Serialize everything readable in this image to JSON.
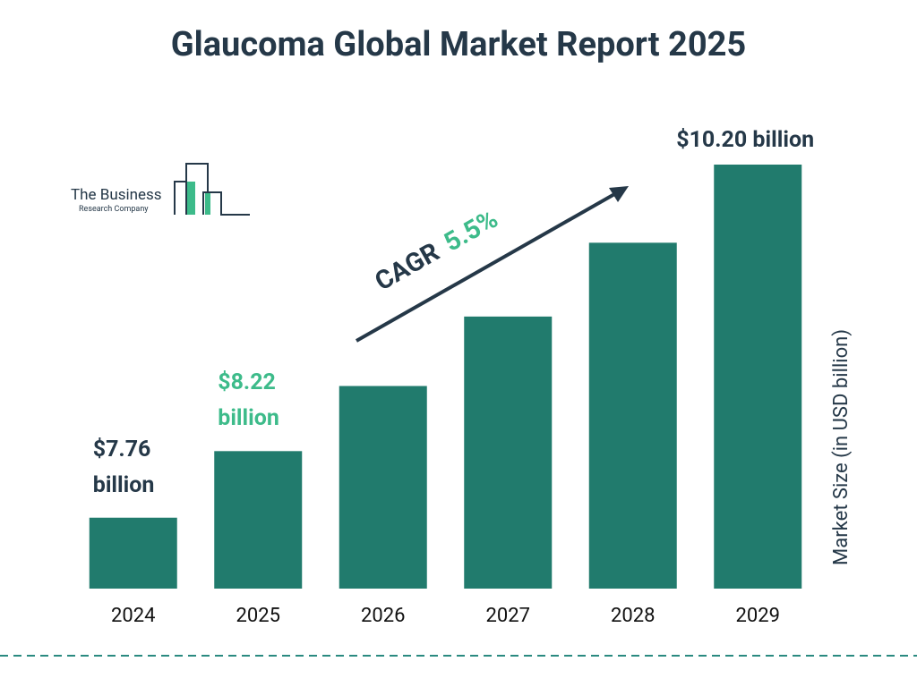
{
  "chart_data": {
    "type": "bar",
    "title": "Glaucoma Global Market Report 2025",
    "logo": {
      "line1": "The Business",
      "line2": "Research Company"
    },
    "y_axis_label": "Market Size (in USD billion)",
    "categories": [
      "2024",
      "2025",
      "2026",
      "2027",
      "2028",
      "2029"
    ],
    "values": [
      7.76,
      8.22,
      8.67,
      9.15,
      9.66,
      10.2
    ],
    "value_labels": [
      "$7.76 billion",
      "$8.22 billion",
      null,
      null,
      null,
      "$10.20 billion"
    ],
    "value_label_colors": [
      "#253848",
      "#3dbb8a",
      null,
      null,
      null,
      "#253848"
    ],
    "color": "#217b6d",
    "ylim": [
      7.27,
      10.2
    ],
    "annotation": {
      "label": "CAGR",
      "value": "5.5%",
      "label_color": "#253848",
      "value_color": "#3dbb8a"
    }
  }
}
